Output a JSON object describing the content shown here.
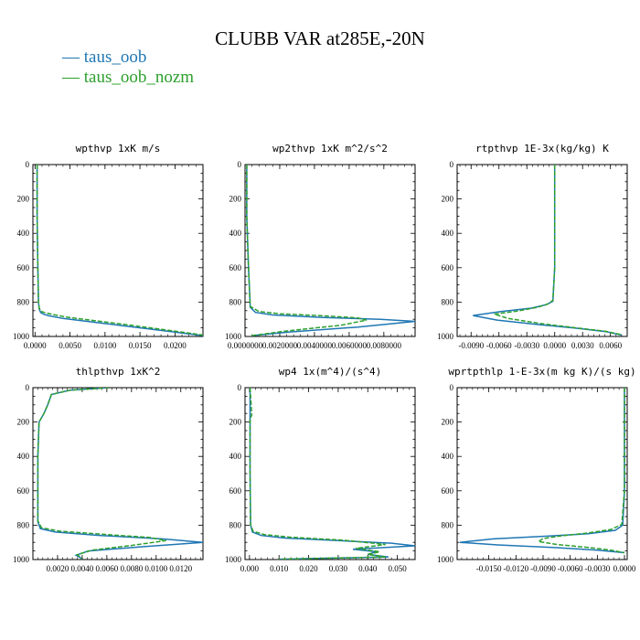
{
  "title": "CLUBB VAR at285E,-20N",
  "legend": [
    {
      "name": "taus_oob",
      "color": "#1f77b4"
    },
    {
      "name": "taus_oob_nozm",
      "color": "#2ca02c"
    }
  ],
  "chart_data": [
    {
      "type": "line",
      "title": "wpthvp  1xK m/s",
      "xlim": [
        -0.0003,
        0.024
      ],
      "ylim": [
        1000,
        0
      ],
      "xticks": [
        "0.0000",
        "0.0050",
        "0.0100",
        "0.0150",
        "0.0200"
      ],
      "xtick_values": [
        0,
        0.005,
        0.01,
        0.015,
        0.02
      ],
      "yticks": [
        "0",
        "200",
        "400",
        "600",
        "800",
        "1000"
      ],
      "series": [
        {
          "x": [
            0.0003,
            0.0003,
            0.0004,
            0.0005,
            0.0006,
            0.0008,
            0.0012,
            0.002,
            0.004,
            0.008,
            0.012,
            0.016,
            0.02,
            0.024
          ],
          "y": [
            0,
            300,
            600,
            800,
            840,
            860,
            870,
            880,
            895,
            915,
            935,
            955,
            975,
            995
          ]
        },
        {
          "x": [
            0.0003,
            0.0003,
            0.0004,
            0.0005,
            0.0006,
            0.0009,
            0.0015,
            0.0025,
            0.0045,
            0.0085,
            0.0125,
            0.0165,
            0.0205,
            0.024
          ],
          "y": [
            0,
            300,
            600,
            800,
            835,
            855,
            862,
            872,
            887,
            908,
            928,
            950,
            972,
            992
          ]
        }
      ]
    },
    {
      "type": "line",
      "title": "wp2thvp  1xK m^2/s^2",
      "xlim": [
        0,
        0.0098
      ],
      "ylim": [
        1000,
        0
      ],
      "xticks": [
        "0.0000000",
        "0.0020000",
        "0.0040000",
        "0.0060000",
        "0.0080000"
      ],
      "xtick_values": [
        0,
        0.002,
        0.004,
        0.006,
        0.008
      ],
      "yticks": [
        "0",
        "200",
        "400",
        "600",
        "800",
        "1000"
      ],
      "series": [
        {
          "x": [
            0.0001,
            0.0001,
            0.0002,
            0.0003,
            0.0006,
            0.0016,
            0.0045,
            0.0078,
            0.0098,
            0.0065,
            0.0025,
            0.0004
          ],
          "y": [
            0,
            300,
            600,
            830,
            860,
            875,
            890,
            900,
            912,
            945,
            975,
            995
          ]
        },
        {
          "x": [
            0.0001,
            0.0001,
            0.0002,
            0.0003,
            0.0008,
            0.002,
            0.0045,
            0.0065,
            0.007,
            0.0055,
            0.0022,
            0.0004
          ],
          "y": [
            0,
            300,
            600,
            825,
            855,
            868,
            880,
            892,
            905,
            935,
            970,
            995
          ]
        }
      ]
    },
    {
      "type": "line",
      "title": "rtpthvp  1E-3x(kg/kg) K",
      "xlim": [
        -0.0105,
        0.0078
      ],
      "ylim": [
        1000,
        0
      ],
      "xticks": [
        "-0.0090",
        "-0.0060",
        "-0.0030",
        "0.0000",
        "0.0030",
        "0.0060"
      ],
      "xtick_values": [
        -0.009,
        -0.006,
        -0.003,
        0,
        0.003,
        0.006
      ],
      "yticks": [
        "0",
        "200",
        "400",
        "600",
        "800",
        "1000"
      ],
      "series": [
        {
          "x": [
            0,
            0,
            0,
            -0.0002,
            -0.0009,
            -0.0025,
            -0.0058,
            -0.0088,
            -0.0062,
            -0.002,
            0.002,
            0.0055,
            0.0072
          ],
          "y": [
            0,
            300,
            600,
            795,
            815,
            835,
            855,
            878,
            905,
            930,
            950,
            972,
            992
          ]
        },
        {
          "x": [
            0,
            0,
            0,
            -0.0002,
            -0.0007,
            -0.0018,
            -0.004,
            -0.0065,
            -0.005,
            -0.0015,
            0.002,
            0.0055,
            0.0072
          ],
          "y": [
            0,
            300,
            600,
            790,
            810,
            830,
            852,
            870,
            895,
            925,
            948,
            970,
            990
          ]
        }
      ]
    },
    {
      "type": "line",
      "title": "thlpthvp  1xK^2",
      "xlim": [
        0,
        0.0138
      ],
      "ylim": [
        1000,
        0
      ],
      "xticks": [
        "0.0020",
        "0.0040",
        "0.0060",
        "0.0080",
        "0.0100",
        "0.0120"
      ],
      "xtick_values": [
        0.002,
        0.004,
        0.006,
        0.008,
        0.01,
        0.012
      ],
      "yticks": [
        "0",
        "200",
        "400",
        "600",
        "800",
        "1000"
      ],
      "series": [
        {
          "x": [
            0.0062,
            0.003,
            0.0015,
            0.0012,
            0.0009,
            0.0005,
            0.0004,
            0.0004,
            0.0006,
            0.0018,
            0.0055,
            0.0105,
            0.0138,
            0.009,
            0.0045,
            0.0035,
            0.004
          ],
          "y": [
            0,
            15,
            40,
            100,
            150,
            200,
            400,
            780,
            820,
            840,
            860,
            880,
            900,
            925,
            950,
            975,
            995
          ]
        },
        {
          "x": [
            0.0062,
            0.003,
            0.0015,
            0.0012,
            0.0009,
            0.0005,
            0.0004,
            0.0004,
            0.0007,
            0.0022,
            0.006,
            0.0095,
            0.0108,
            0.008,
            0.0048,
            0.0036,
            0.004
          ],
          "y": [
            0,
            15,
            40,
            100,
            150,
            200,
            400,
            775,
            815,
            835,
            855,
            872,
            890,
            918,
            945,
            972,
            995
          ]
        }
      ]
    },
    {
      "type": "line",
      "title": "wp4  1x(m^4)/(s^4)",
      "xlim": [
        -0.0015,
        0.056
      ],
      "ylim": [
        1000,
        0
      ],
      "xticks": [
        "0.000",
        "0.010",
        "0.020",
        "0.030",
        "0.040",
        "0.050"
      ],
      "xtick_values": [
        0,
        0.01,
        0.02,
        0.03,
        0.04,
        0.05
      ],
      "yticks": [
        "0",
        "200",
        "400",
        "600",
        "800",
        "1000"
      ],
      "series": [
        {
          "x": [
            0.0002,
            0.0002,
            0.0004,
            0.001,
            0.004,
            0.012,
            0.03,
            0.048,
            0.056,
            0.035,
            0.043,
            0.04,
            0.047,
            0.01
          ],
          "y": [
            0,
            500,
            800,
            840,
            860,
            875,
            890,
            905,
            920,
            940,
            955,
            970,
            985,
            998
          ]
        },
        {
          "x": [
            0.0002,
            0.0008,
            0.0002,
            0.0002,
            0.0004,
            0.0012,
            0.005,
            0.014,
            0.032,
            0.046,
            0.036,
            0.044,
            0.04,
            0.046,
            0.01
          ],
          "y": [
            0,
            160,
            180,
            500,
            795,
            835,
            855,
            870,
            888,
            912,
            935,
            955,
            970,
            985,
            998
          ]
        }
      ]
    },
    {
      "type": "line",
      "title": "wprtpthlp  1-E-3x(m kg K)/(s kg)",
      "xlim": [
        -0.0185,
        0.0003
      ],
      "ylim": [
        1000,
        0
      ],
      "xticks": [
        "-0.0150",
        "-0.0120",
        "-0.0090",
        "-0.0060",
        "-0.0030",
        "0.0000"
      ],
      "xtick_values": [
        -0.015,
        -0.012,
        -0.009,
        -0.006,
        -0.003,
        0
      ],
      "yticks": [
        "0",
        "200",
        "400",
        "600",
        "800",
        "1000"
      ],
      "series": [
        {
          "x": [
            0,
            0,
            -0.0002,
            -0.001,
            -0.004,
            -0.009,
            -0.0145,
            -0.0182,
            -0.014,
            -0.008,
            -0.003,
            0
          ],
          "y": [
            0,
            600,
            800,
            830,
            850,
            865,
            880,
            900,
            915,
            930,
            945,
            960
          ]
        },
        {
          "x": [
            0,
            0,
            -0.0003,
            -0.0015,
            -0.004,
            -0.007,
            -0.009,
            -0.0095,
            -0.0075,
            -0.004,
            -0.0015,
            0
          ],
          "y": [
            0,
            600,
            795,
            825,
            845,
            862,
            878,
            895,
            912,
            930,
            945,
            960
          ]
        }
      ]
    }
  ]
}
